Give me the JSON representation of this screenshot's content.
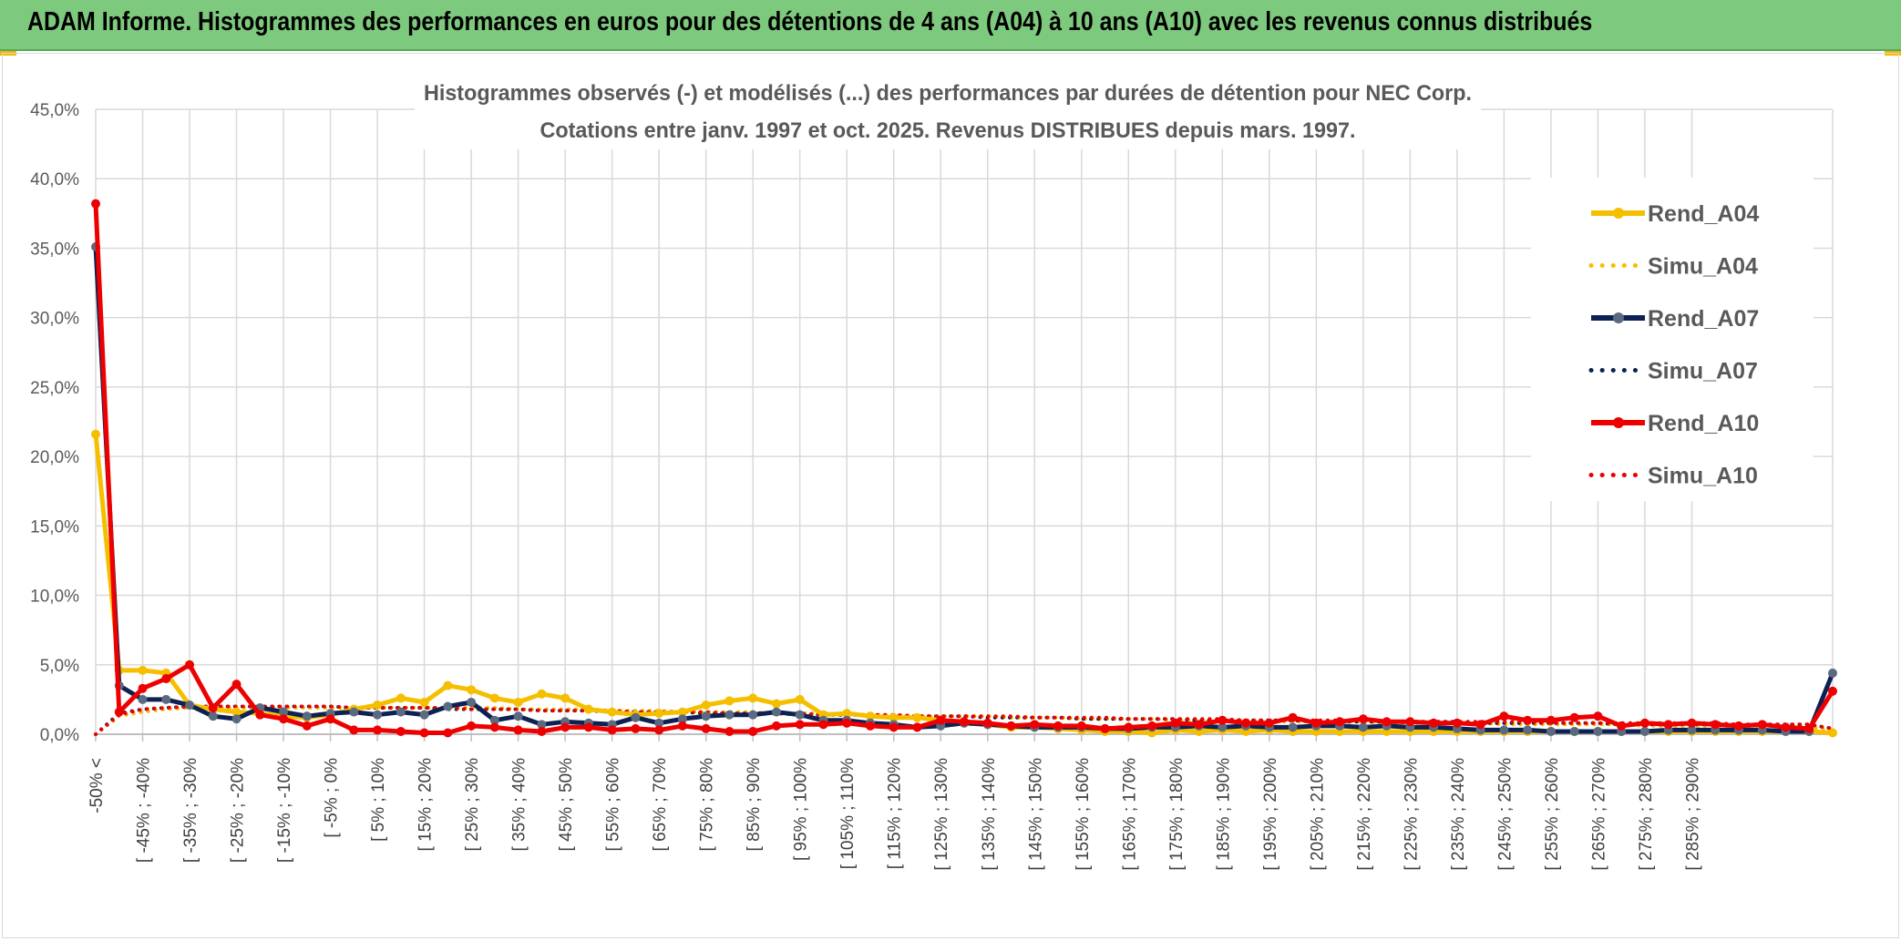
{
  "header": {
    "title": "ADAM Informe. Histogrammes des performances en euros pour des détentions de 4 ans (A04) à 10 ans (A10) avec les revenus connus distribués"
  },
  "colors": {
    "banner": "#7dc97d",
    "a04": "#f5bf00",
    "a07": "#0d2152",
    "a07_marker": "#5a6a80",
    "a10": "#ee0000"
  },
  "chart_data": {
    "type": "line",
    "title": "Histogrammes observés (-) et modélisés (...) des performances par durées de détention pour NEC Corp.",
    "subtitle": "Cotations entre janv. 1997 et oct. 2025. Revenus DISTRIBUES depuis mars. 1997.",
    "ylim": [
      0,
      45
    ],
    "y_ticks": [
      "0,0%",
      "5,0%",
      "10,0%",
      "15,0%",
      "20,0%",
      "25,0%",
      "30,0%",
      "35,0%",
      "40,0%",
      "45,0%"
    ],
    "x_tick_labels": [
      "-50% <",
      "[ -45% ; -40%",
      "[ -35% ; -30%",
      "[ -25% ; -20%",
      "[ -15% ; -10%",
      "[ -5% ; 0%",
      "[ 5% ; 10%",
      "[ 15% ; 20%",
      "[ 25% ; 30%",
      "[ 35% ; 40%",
      "[ 45% ; 50%",
      "[ 55% ; 60%",
      "[ 65% ; 70%",
      "[ 75% ; 80%",
      "[ 85% ; 90%",
      "[ 95% ; 100%",
      "[ 105% ; 110%",
      "[ 115% ; 120%",
      "[ 125% ; 130%",
      "[ 135% ; 140%",
      "[ 145% ; 150%",
      "[ 155% ; 160%",
      "[ 165% ; 170%",
      "[ 175% ; 180%",
      "[ 185% ; 190%",
      "[ 195% ; 200%",
      "[ 205% ; 210%",
      "[ 215% ; 220%",
      "[ 225% ; 230%",
      "[ 235% ; 240%",
      "[ 245% ; 250%",
      "[ 255% ; 260%",
      "[ 265% ; 270%",
      "[ 275% ; 280%",
      "[ 285% ; 290%"
    ],
    "legend_position": "right",
    "grid": true,
    "series": [
      {
        "name": "Rend_A04",
        "style": "solid",
        "color": "#f5bf00",
        "values": [
          21.6,
          4.6,
          4.6,
          4.4,
          2.1,
          1.8,
          1.6,
          1.5,
          1.3,
          1.2,
          1.4,
          1.8,
          2.1,
          2.6,
          2.3,
          3.5,
          3.2,
          2.6,
          2.3,
          2.9,
          2.6,
          1.8,
          1.6,
          1.4,
          1.5,
          1.6,
          2.1,
          2.4,
          2.6,
          2.2,
          2.5,
          1.4,
          1.5,
          1.3,
          1.2,
          1.2,
          1.0,
          0.8,
          0.7,
          0.5,
          0.5,
          0.4,
          0.3,
          0.2,
          0.2,
          0.1,
          0.3,
          0.2,
          0.3,
          0.2,
          0.3,
          0.2,
          0.2,
          0.2,
          0.2,
          0.2,
          0.2,
          0.2,
          0.2,
          0.2,
          0.2,
          0.2,
          0.2,
          0.2,
          0.2,
          0.2,
          0.2,
          0.2,
          0.2,
          0.2,
          0.2,
          0.2,
          0.2,
          0.2,
          0.1
        ]
      },
      {
        "name": "Simu_A04",
        "style": "dotted",
        "color": "#f5bf00",
        "values": [
          0.0,
          1.3,
          1.6,
          1.8,
          1.9,
          1.9,
          1.9,
          1.9,
          1.9,
          1.9,
          1.9,
          1.9,
          1.9,
          1.9,
          1.9,
          1.9,
          1.9,
          1.9,
          1.8,
          1.8,
          1.8,
          1.8,
          1.7,
          1.7,
          1.7,
          1.6,
          1.6,
          1.6,
          1.6,
          1.5,
          1.5,
          1.5,
          1.4,
          1.4,
          1.4,
          1.3,
          1.3,
          1.3,
          1.3,
          1.2,
          1.2,
          1.2,
          1.1,
          1.1,
          1.1,
          1.1,
          1.0,
          1.0,
          1.0,
          1.0,
          0.9,
          0.9,
          0.9,
          0.9,
          0.9,
          0.8,
          0.8,
          0.8,
          0.8,
          0.8,
          0.7,
          0.7,
          0.7,
          0.7,
          0.7,
          0.7,
          0.6,
          0.6,
          0.6,
          0.6,
          0.6,
          0.6,
          0.6,
          0.5,
          0.3
        ]
      },
      {
        "name": "Rend_A07",
        "style": "solid",
        "color": "#0d2152",
        "values": [
          35.1,
          3.5,
          2.5,
          2.5,
          2.1,
          1.3,
          1.1,
          1.9,
          1.6,
          1.3,
          1.5,
          1.6,
          1.4,
          1.6,
          1.4,
          2.0,
          2.3,
          1.0,
          1.3,
          0.7,
          0.9,
          0.8,
          0.7,
          1.2,
          0.8,
          1.1,
          1.3,
          1.4,
          1.4,
          1.6,
          1.4,
          1.0,
          1.0,
          0.8,
          0.7,
          0.5,
          0.6,
          0.8,
          0.7,
          0.6,
          0.5,
          0.5,
          0.5,
          0.4,
          0.4,
          0.5,
          0.5,
          0.6,
          0.5,
          0.6,
          0.5,
          0.5,
          0.6,
          0.6,
          0.5,
          0.6,
          0.5,
          0.5,
          0.4,
          0.3,
          0.3,
          0.3,
          0.2,
          0.2,
          0.2,
          0.2,
          0.2,
          0.3,
          0.3,
          0.3,
          0.3,
          0.3,
          0.2,
          0.2,
          4.4
        ]
      },
      {
        "name": "Simu_A07",
        "style": "dotted",
        "color": "#0d2152",
        "values": [
          0.0,
          1.5,
          1.8,
          1.9,
          2.0,
          2.0,
          2.0,
          2.0,
          2.0,
          2.0,
          2.0,
          1.9,
          1.9,
          1.9,
          1.9,
          1.8,
          1.8,
          1.8,
          1.8,
          1.7,
          1.7,
          1.7,
          1.6,
          1.6,
          1.6,
          1.6,
          1.5,
          1.5,
          1.5,
          1.5,
          1.4,
          1.4,
          1.4,
          1.4,
          1.3,
          1.3,
          1.3,
          1.3,
          1.2,
          1.2,
          1.2,
          1.2,
          1.1,
          1.1,
          1.1,
          1.1,
          1.1,
          1.0,
          1.0,
          1.0,
          1.0,
          1.0,
          0.9,
          0.9,
          0.9,
          0.9,
          0.9,
          0.9,
          0.9,
          0.8,
          0.8,
          0.8,
          0.8,
          0.8,
          0.8,
          0.7,
          0.7,
          0.7,
          0.7,
          0.7,
          0.7,
          0.7,
          0.7,
          0.7,
          0.4
        ]
      },
      {
        "name": "Rend_A10",
        "style": "solid",
        "color": "#ee0000",
        "values": [
          38.2,
          1.6,
          3.3,
          4.0,
          5.0,
          1.9,
          3.6,
          1.4,
          1.1,
          0.6,
          1.1,
          0.3,
          0.3,
          0.2,
          0.1,
          0.1,
          0.6,
          0.5,
          0.3,
          0.2,
          0.5,
          0.5,
          0.3,
          0.4,
          0.3,
          0.6,
          0.4,
          0.2,
          0.2,
          0.6,
          0.7,
          0.7,
          0.8,
          0.6,
          0.5,
          0.5,
          1.0,
          0.9,
          0.8,
          0.6,
          0.7,
          0.6,
          0.6,
          0.4,
          0.5,
          0.6,
          0.8,
          0.7,
          1.0,
          0.8,
          0.8,
          1.2,
          0.8,
          0.9,
          1.1,
          0.9,
          0.9,
          0.8,
          0.8,
          0.7,
          1.3,
          1.0,
          1.0,
          1.2,
          1.3,
          0.6,
          0.8,
          0.7,
          0.8,
          0.7,
          0.6,
          0.7,
          0.5,
          0.4,
          3.1
        ]
      },
      {
        "name": "Simu_A10",
        "style": "dotted",
        "color": "#ee0000",
        "values": [
          0.0,
          1.4,
          1.8,
          1.9,
          2.0,
          2.0,
          2.0,
          2.0,
          2.0,
          2.0,
          2.0,
          1.9,
          1.9,
          1.9,
          1.9,
          1.9,
          1.8,
          1.8,
          1.8,
          1.7,
          1.7,
          1.7,
          1.7,
          1.6,
          1.6,
          1.6,
          1.6,
          1.5,
          1.5,
          1.5,
          1.5,
          1.4,
          1.4,
          1.4,
          1.4,
          1.3,
          1.3,
          1.3,
          1.3,
          1.3,
          1.2,
          1.2,
          1.2,
          1.2,
          1.1,
          1.1,
          1.1,
          1.1,
          1.1,
          1.0,
          1.0,
          1.0,
          1.0,
          1.0,
          1.0,
          0.9,
          0.9,
          0.9,
          0.9,
          0.9,
          0.9,
          0.9,
          0.8,
          0.8,
          0.8,
          0.8,
          0.8,
          0.8,
          0.8,
          0.8,
          0.7,
          0.7,
          0.7,
          0.7,
          0.4
        ]
      }
    ]
  }
}
